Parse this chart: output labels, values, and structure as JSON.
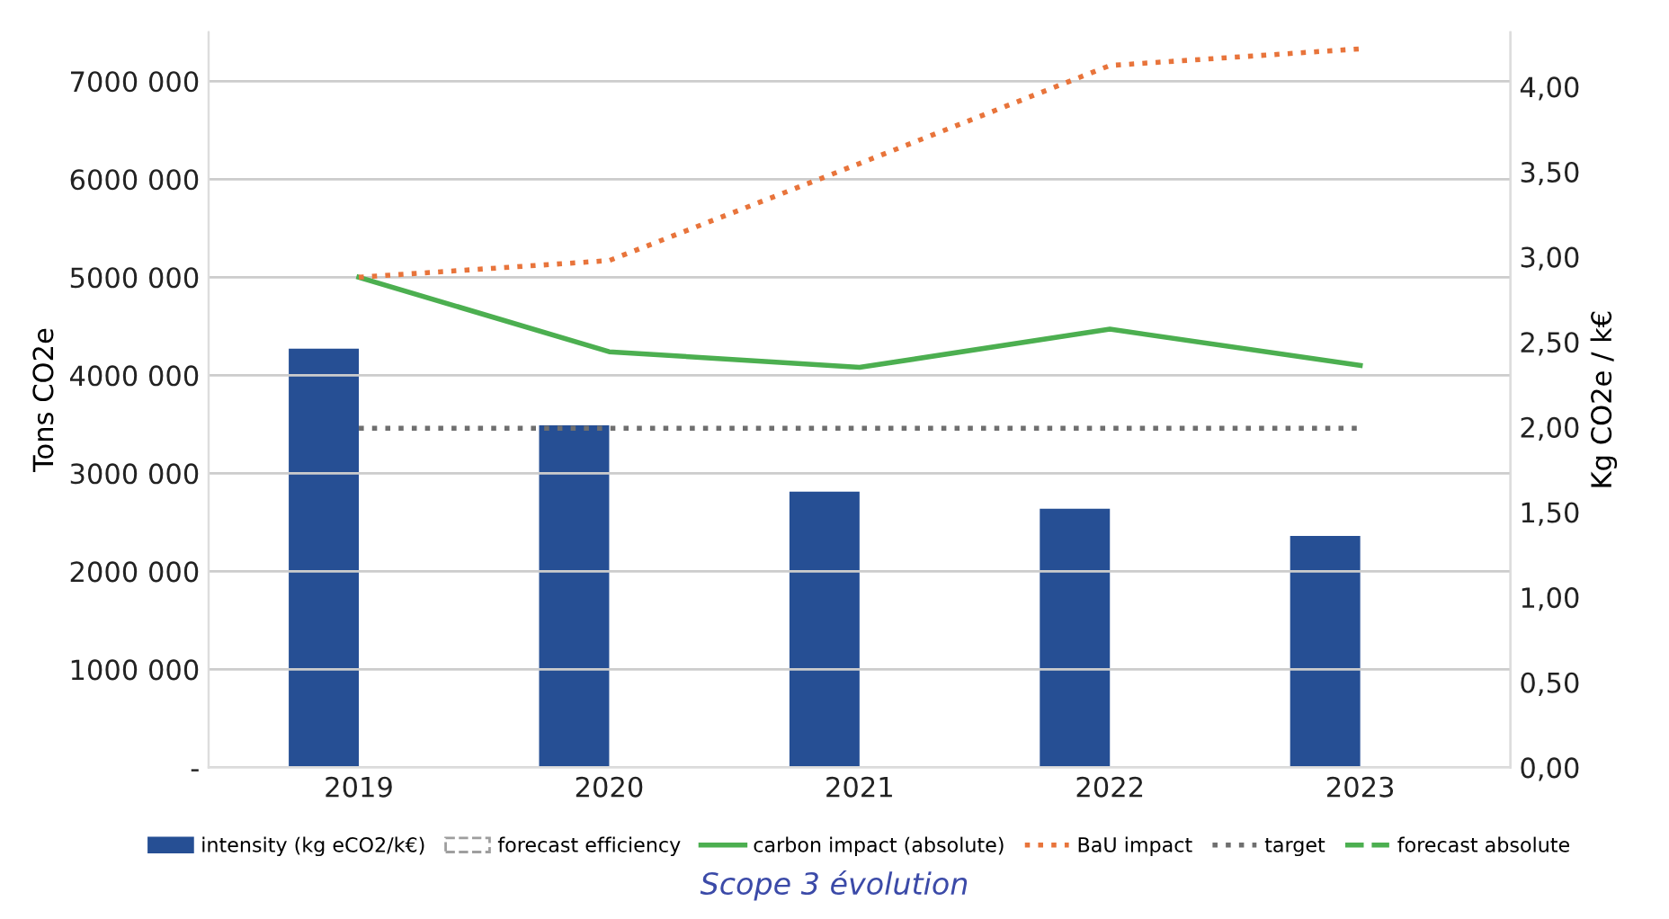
{
  "chart_data": {
    "type": "bar",
    "annotations": [
      "Scope 3 évolution"
    ],
    "ylabel": "Tons CO2e",
    "y2label": "Kg CO2e / k€",
    "categories": [
      "2019",
      "2020",
      "2021",
      "2022",
      "2023"
    ],
    "series": [
      {
        "name": "intensity (kg eCO2/k€)",
        "axis": "y2",
        "color": "#264f94",
        "values": [
          2.46,
          2.01,
          1.62,
          1.52,
          1.36
        ]
      },
      {
        "name": "forecast efficiency",
        "axis": "y2",
        "color": "#9e9e9e",
        "line_style": "dashed",
        "values": [
          null,
          null,
          null,
          null,
          null
        ]
      },
      {
        "name": "carbon impact (absolute)",
        "type": "line",
        "color": "#4caf50",
        "line_style": "solid",
        "values": [
          5000000,
          4240000,
          4080000,
          4470000,
          4100000
        ]
      },
      {
        "name": "BaU impact",
        "type": "line",
        "color": "#e8743b",
        "line_style": "dotted",
        "values": [
          5000000,
          5170000,
          6160000,
          7160000,
          7330000
        ]
      },
      {
        "name": "target",
        "type": "line",
        "color": "#6f6f6f",
        "line_style": "dotted",
        "values": [
          3460000,
          3460000,
          3460000,
          3460000,
          3460000
        ]
      },
      {
        "name": "forecast absolute",
        "type": "line",
        "color": "#4caf50",
        "line_style": "dashed",
        "values": [
          null,
          null,
          null,
          null,
          null
        ]
      }
    ],
    "ylim": [
      0,
      7500000
    ],
    "yticks": [
      {
        "value": 0,
        "label": "-"
      },
      {
        "value": 1000000,
        "label": "1000 000"
      },
      {
        "value": 2000000,
        "label": "2000 000"
      },
      {
        "value": 3000000,
        "label": "3000 000"
      },
      {
        "value": 4000000,
        "label": "4000 000"
      },
      {
        "value": 5000000,
        "label": "5000 000"
      },
      {
        "value": 6000000,
        "label": "6000 000"
      },
      {
        "value": 7000000,
        "label": "7000 000"
      }
    ],
    "y2lim": [
      0,
      4.32
    ],
    "y2ticks": [
      {
        "value": 0,
        "label": "0,00"
      },
      {
        "value": 0.5,
        "label": "0,50"
      },
      {
        "value": 1.0,
        "label": "1,00"
      },
      {
        "value": 1.5,
        "label": "1,50"
      },
      {
        "value": 2.0,
        "label": "2,00"
      },
      {
        "value": 2.5,
        "label": "2,50"
      },
      {
        "value": 3.0,
        "label": "3,00"
      },
      {
        "value": 3.5,
        "label": "3,50"
      },
      {
        "value": 4.0,
        "label": "4,00"
      }
    ],
    "grid": "y",
    "legend": "bottom",
    "marker": "none"
  }
}
